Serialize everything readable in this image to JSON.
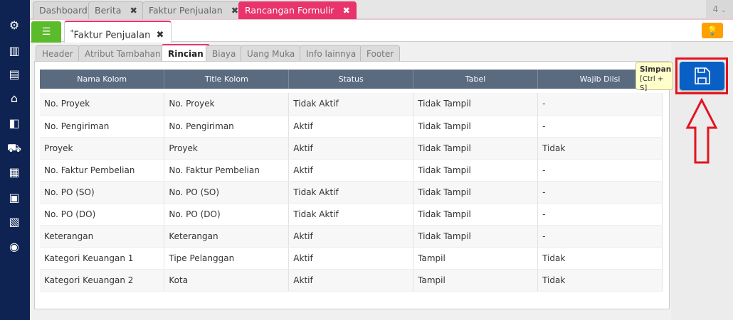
{
  "top_tabs": [
    {
      "label": "Dashboard",
      "closable": false
    },
    {
      "label": "Berita",
      "closable": true
    },
    {
      "label": "Faktur Penjualan",
      "closable": true
    },
    {
      "label": "Rancangan Formulir",
      "closable": true,
      "active": true
    }
  ],
  "tab_count": "4",
  "doc_tab": {
    "modified_mark": "*",
    "label": "Faktur Penjualan"
  },
  "sub_tabs": [
    "Header",
    "Atribut Tambahan",
    "Rincian",
    "Biaya",
    "Uang Muka",
    "Info lainnya",
    "Footer"
  ],
  "active_sub_tab": "Rincian",
  "table": {
    "headers": [
      "Nama Kolom",
      "Title Kolom",
      "Status",
      "Tabel",
      "Wajib Diisi"
    ],
    "rows": [
      [
        "No. Proyek",
        "No. Proyek",
        "Tidak Aktif",
        "Tidak Tampil",
        "-"
      ],
      [
        "No. Pengiriman",
        "No. Pengiriman",
        "Aktif",
        "Tidak Tampil",
        "-"
      ],
      [
        "Proyek",
        "Proyek",
        "Aktif",
        "Tidak Tampil",
        "Tidak"
      ],
      [
        "No. Faktur Pembelian",
        "No. Faktur Pembelian",
        "Aktif",
        "Tidak Tampil",
        "-"
      ],
      [
        "No. PO (SO)",
        "No. PO (SO)",
        "Tidak Aktif",
        "Tidak Tampil",
        "-"
      ],
      [
        "No. PO (DO)",
        "No. PO (DO)",
        "Tidak Aktif",
        "Tidak Tampil",
        "-"
      ],
      [
        "Keterangan",
        "Keterangan",
        "Aktif",
        "Tidak Tampil",
        "-"
      ],
      [
        "Kategori Keuangan 1",
        "Tipe Pelanggan",
        "Aktif",
        "Tampil",
        "Tidak"
      ],
      [
        "Kategori Keuangan 2",
        "Kota",
        "Aktif",
        "Tampil",
        "Tidak"
      ]
    ]
  },
  "tooltip": {
    "title": "Simpan",
    "shortcut": "[Ctrl + S]"
  },
  "colors": {
    "sidebar": "#0e2352",
    "accent": "#e8336d",
    "menu": "#5cbb2b",
    "save": "#0a5fc4",
    "highlight": "#e3141e",
    "bulb": "#ffa000"
  }
}
